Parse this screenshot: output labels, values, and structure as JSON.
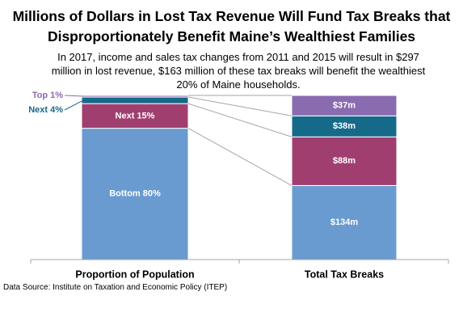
{
  "chart_data": {
    "type": "stacked100",
    "title": "Millions of Dollars in Lost Tax Revenue Will Fund Tax Breaks that Disproportionately Benefit Maine’s Wealthiest Families",
    "subtitle": "In 2017,  income and sales tax changes from 2011 and 2015  will result in $297 million in lost revenue, $163 million of these tax breaks will benefit the wealthiest 20% of Maine households.",
    "source": "Data Source: Institute on Taxation and Economic Policy (ITEP)",
    "categories": [
      "Proportion of Population",
      "Total Tax Breaks"
    ],
    "series": [
      {
        "name": "Bottom 80%",
        "color": "#6a9bd0",
        "values": [
          80,
          134
        ],
        "value_labels": [
          null,
          "$134m"
        ]
      },
      {
        "name": "Next 15%",
        "color": "#a03f6f",
        "values": [
          15,
          88
        ],
        "value_labels": [
          null,
          "$88m"
        ]
      },
      {
        "name": "Next 4%",
        "color": "#166a89",
        "values": [
          4,
          38
        ],
        "value_labels": [
          null,
          "$38m"
        ]
      },
      {
        "name": "Top 1%",
        "color": "#8a6bb0",
        "values": [
          1,
          37
        ],
        "value_labels": [
          null,
          "$37m"
        ]
      }
    ]
  }
}
